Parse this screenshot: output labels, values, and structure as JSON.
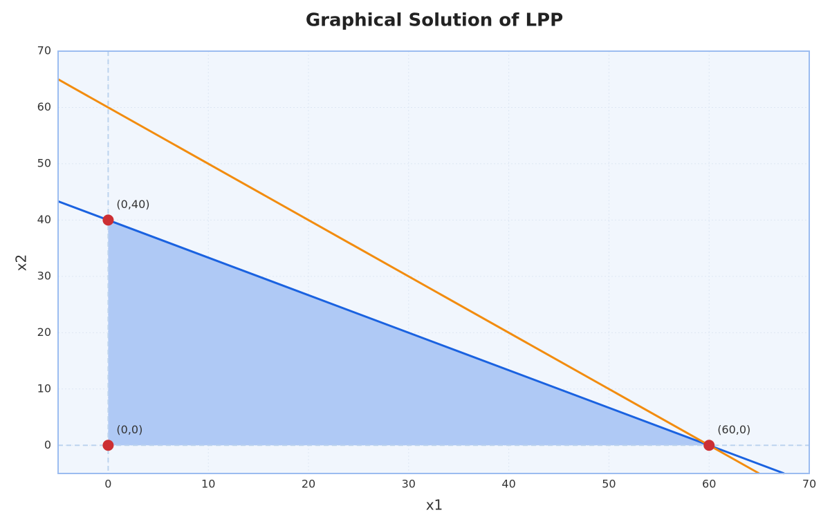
{
  "chart_data": {
    "type": "line",
    "title": "Graphical Solution of LPP",
    "x_label": "x1",
    "y_label": "x2",
    "xlim": [
      -5,
      70
    ],
    "ylim": [
      -5,
      70
    ],
    "xticks": [
      0,
      10,
      20,
      30,
      40,
      50,
      60,
      70
    ],
    "yticks": [
      0,
      10,
      20,
      30,
      40,
      50,
      60,
      70
    ],
    "grid": true,
    "series": [
      {
        "color": "#1a62e0",
        "x": [
          -5,
          67.5
        ],
        "values": [
          43.33,
          -5
        ]
      },
      {
        "color": "#f28c0f",
        "x": [
          -5,
          65
        ],
        "values": [
          65,
          -5
        ]
      }
    ],
    "region": {
      "color": "#afc9f5",
      "x": [
        0,
        0,
        60
      ],
      "values": [
        0,
        40,
        0
      ]
    },
    "points": {
      "color": "#cc2f33",
      "x": [
        0,
        0,
        60
      ],
      "values": [
        40,
        0,
        0
      ],
      "labels": [
        "(0,40)",
        "(0,0)",
        "(60,0)"
      ]
    }
  }
}
